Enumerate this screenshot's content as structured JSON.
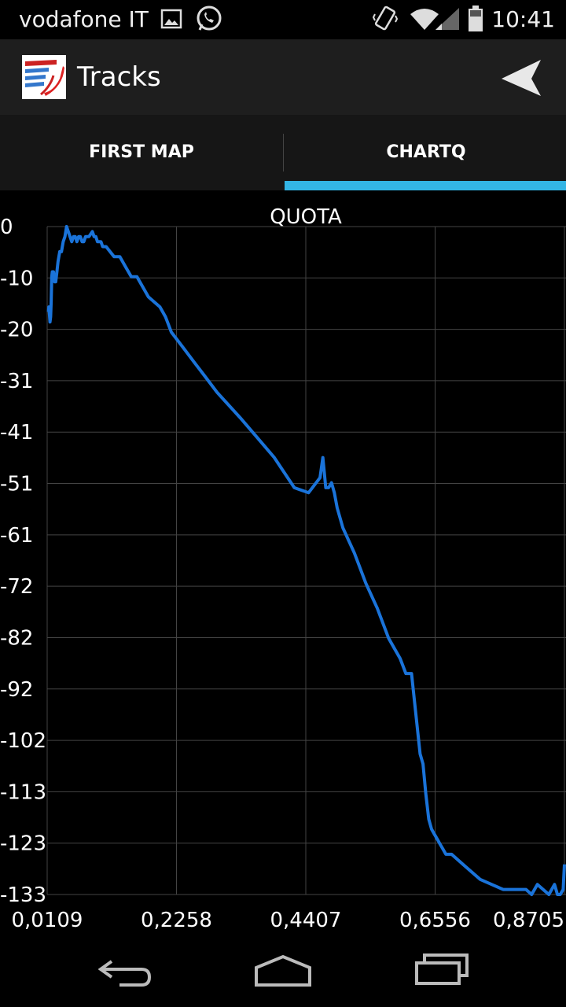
{
  "status_bar": {
    "carrier": "vodafone IT",
    "time": "10:41"
  },
  "action_bar": {
    "title": "Tracks"
  },
  "tabs": [
    {
      "label": "FIRST MAP",
      "selected": false
    },
    {
      "label": "CHARTQ",
      "selected": true
    }
  ],
  "colors": {
    "accent": "#33b5e5",
    "line": "#1a73d9",
    "grid": "#444444"
  },
  "chart_data": {
    "type": "line",
    "title": "QUOTA",
    "xlabel": "",
    "ylabel": "",
    "x_ticks": [
      "0,0109",
      "0,2258",
      "0,4407",
      "0,6556",
      "0,8705"
    ],
    "y_ticks": [
      "0",
      "-10",
      "-20",
      "-31",
      "-41",
      "-51",
      "-61",
      "-72",
      "-82",
      "-92",
      "-102",
      "-113",
      "-123",
      "-133"
    ],
    "xlim": [
      -0.037,
      0.87
    ],
    "ylim": [
      -133,
      0
    ],
    "grid": true,
    "series": [
      {
        "x": [
          -0.035,
          -0.034,
          -0.032,
          -0.031,
          -0.03,
          -0.029,
          -0.028,
          -0.027,
          -0.026,
          -0.024,
          -0.022,
          -0.02,
          -0.018,
          -0.015,
          -0.012,
          -0.009,
          -0.006,
          -0.003,
          0.0,
          0.003,
          0.006,
          0.009,
          0.012,
          0.015,
          0.018,
          0.021,
          0.024,
          0.027,
          0.03,
          0.033,
          0.036,
          0.039,
          0.042,
          0.045,
          0.048,
          0.051,
          0.054,
          0.057,
          0.06,
          0.063,
          0.066,
          0.08,
          0.09,
          0.1,
          0.11,
          0.12,
          0.14,
          0.15,
          0.16,
          0.17,
          0.18,
          0.2,
          0.22,
          0.24,
          0.26,
          0.3,
          0.33,
          0.36,
          0.395,
          0.42,
          0.44,
          0.445,
          0.45,
          0.455,
          0.46,
          0.465,
          0.47,
          0.48,
          0.5,
          0.52,
          0.54,
          0.56,
          0.57,
          0.58,
          0.59,
          0.6,
          0.615,
          0.62,
          0.625,
          0.63,
          0.635,
          0.64,
          0.645,
          0.65,
          0.655,
          0.66,
          0.665,
          0.67,
          0.69,
          0.7,
          0.71,
          0.72,
          0.74,
          0.76,
          0.78,
          0.8,
          0.81,
          0.82,
          0.84,
          0.845,
          0.85,
          0.855,
          0.86,
          0.865,
          0.87
        ],
        "y": [
          -17,
          -16,
          -19,
          -18,
          -15,
          -10,
          -9,
          -10,
          -9,
          -11,
          -11,
          -9,
          -7,
          -5,
          -5,
          -3,
          -2,
          0,
          -1,
          -2,
          -3,
          -2,
          -2,
          -3,
          -2,
          -2,
          -3,
          -3,
          -2,
          -2,
          -2,
          -1.5,
          -1,
          -2,
          -2,
          -3,
          -3,
          -3,
          -4,
          -4,
          -4,
          -6,
          -6,
          -8,
          -10,
          -10,
          -14,
          -15,
          -16,
          -18,
          -21,
          -24,
          -27,
          -30,
          -33,
          -38,
          -42,
          -46,
          -52,
          -53,
          -50,
          -46,
          -52,
          -52,
          -51,
          -53,
          -56,
          -60,
          -65,
          -71,
          -76,
          -82,
          -84,
          -86,
          -89,
          -89,
          -105,
          -107,
          -113,
          -118,
          -120,
          -121,
          -122,
          -123,
          -124,
          -125,
          -125,
          -125,
          -127,
          -128,
          -129,
          -130,
          -131,
          -132,
          -132,
          -132,
          -133,
          -131,
          -133,
          -132,
          -131,
          -133,
          -133,
          -132,
          -127
        ]
      }
    ]
  }
}
